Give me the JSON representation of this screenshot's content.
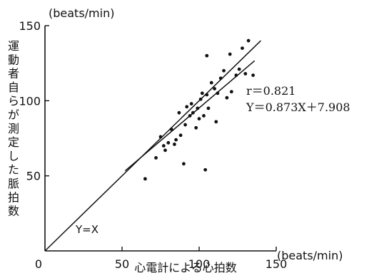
{
  "chart_data": {
    "type": "scatter",
    "title": "",
    "xlabel": "心電計による心拍数",
    "ylabel": "運動者自らが測定した脈拍数",
    "x_unit": "(beats/min)",
    "y_unit": "(beats/min)",
    "xlim": [
      0,
      150
    ],
    "ylim": [
      0,
      150
    ],
    "x_ticks": [
      "0",
      "50",
      "100",
      "150"
    ],
    "y_ticks": [
      "50",
      "100",
      "150"
    ],
    "points": [
      {
        "x": 65,
        "y": 48
      },
      {
        "x": 72,
        "y": 62
      },
      {
        "x": 75,
        "y": 76
      },
      {
        "x": 77,
        "y": 70
      },
      {
        "x": 78,
        "y": 67
      },
      {
        "x": 80,
        "y": 72
      },
      {
        "x": 82,
        "y": 81
      },
      {
        "x": 84,
        "y": 71
      },
      {
        "x": 85,
        "y": 74
      },
      {
        "x": 87,
        "y": 92
      },
      {
        "x": 88,
        "y": 77
      },
      {
        "x": 90,
        "y": 58
      },
      {
        "x": 91,
        "y": 84
      },
      {
        "x": 92,
        "y": 96
      },
      {
        "x": 94,
        "y": 90
      },
      {
        "x": 95,
        "y": 98
      },
      {
        "x": 96,
        "y": 92
      },
      {
        "x": 98,
        "y": 82
      },
      {
        "x": 99,
        "y": 95
      },
      {
        "x": 100,
        "y": 88
      },
      {
        "x": 101,
        "y": 101
      },
      {
        "x": 102,
        "y": 105
      },
      {
        "x": 103,
        "y": 90
      },
      {
        "x": 104,
        "y": 54
      },
      {
        "x": 105,
        "y": 104
      },
      {
        "x": 105,
        "y": 130
      },
      {
        "x": 106,
        "y": 95
      },
      {
        "x": 108,
        "y": 112
      },
      {
        "x": 110,
        "y": 108
      },
      {
        "x": 111,
        "y": 86
      },
      {
        "x": 112,
        "y": 105
      },
      {
        "x": 114,
        "y": 115
      },
      {
        "x": 116,
        "y": 120
      },
      {
        "x": 118,
        "y": 102
      },
      {
        "x": 120,
        "y": 131
      },
      {
        "x": 121,
        "y": 106
      },
      {
        "x": 124,
        "y": 117
      },
      {
        "x": 126,
        "y": 121
      },
      {
        "x": 128,
        "y": 135
      },
      {
        "x": 130,
        "y": 118
      },
      {
        "x": 132,
        "y": 140
      },
      {
        "x": 135,
        "y": 117
      }
    ],
    "identity_line": {
      "label": "Y=X",
      "from": [
        0,
        0
      ],
      "to": [
        140,
        140
      ]
    },
    "regression_line": {
      "slope": 0.873,
      "intercept": 7.908,
      "x_range": [
        52,
        136
      ],
      "r_text": "r＝0.821",
      "equation_text": "Y＝0.873X＋7.908"
    }
  }
}
